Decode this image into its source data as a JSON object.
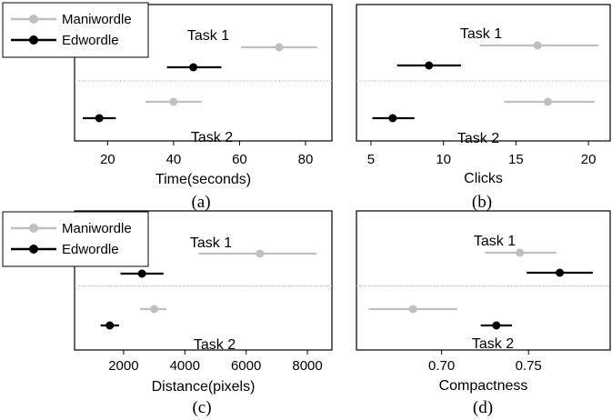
{
  "chart_data": [
    {
      "type": "scatter",
      "panel": "(a)",
      "xlabel": "Time(seconds)",
      "xlim": [
        10,
        88
      ],
      "xticks": [
        20,
        40,
        60,
        80
      ],
      "tick_labels": [
        "20",
        "40",
        "60",
        "80"
      ],
      "legend": {
        "position": "top-left",
        "entries": [
          "Maniwordle",
          "Edwordle"
        ]
      },
      "tasks": [
        "Task 1",
        "Task 2"
      ],
      "series": [
        {
          "name": "Maniwordle",
          "color": "#c0c0c0",
          "points": [
            {
              "task": "Task 1",
              "mean": 72,
              "low": 60.5,
              "high": 83.5
            },
            {
              "task": "Task 2",
              "mean": 40,
              "low": 31.5,
              "high": 48.5
            }
          ]
        },
        {
          "name": "Edwordle",
          "color": "#000000",
          "points": [
            {
              "task": "Task 1",
              "mean": 46,
              "low": 38,
              "high": 54.5
            },
            {
              "task": "Task 2",
              "mean": 17.5,
              "low": 12.5,
              "high": 22.5
            }
          ]
        }
      ]
    },
    {
      "type": "scatter",
      "panel": "(b)",
      "xlabel": "Clicks",
      "xlim": [
        4,
        21.5
      ],
      "xticks": [
        5,
        10,
        15,
        20
      ],
      "tick_labels": [
        "5",
        "10",
        "15",
        "20"
      ],
      "tasks": [
        "Task 1",
        "Task 2"
      ],
      "series": [
        {
          "name": "Maniwordle",
          "color": "#c0c0c0",
          "points": [
            {
              "task": "Task 1",
              "mean": 16.5,
              "low": 12.5,
              "high": 20.7
            },
            {
              "task": "Task 2",
              "mean": 17.2,
              "low": 14.2,
              "high": 20.4
            }
          ]
        },
        {
          "name": "Edwordle",
          "color": "#000000",
          "points": [
            {
              "task": "Task 1",
              "mean": 9,
              "low": 6.8,
              "high": 11.2
            },
            {
              "task": "Task 2",
              "mean": 6.5,
              "low": 5.1,
              "high": 8.0
            }
          ]
        }
      ]
    },
    {
      "type": "scatter",
      "panel": "(c)",
      "xlabel": "Distance(pixels)",
      "xlim": [
        400,
        8800
      ],
      "xticks": [
        2000,
        4000,
        6000,
        8000
      ],
      "tick_labels": [
        "2000",
        "4000",
        "6000",
        "8000"
      ],
      "legend": {
        "position": "top-left",
        "entries": [
          "Maniwordle",
          "Edwordle"
        ]
      },
      "tasks": [
        "Task 1",
        "Task 2"
      ],
      "series": [
        {
          "name": "Maniwordle",
          "color": "#c0c0c0",
          "points": [
            {
              "task": "Task 1",
              "mean": 6450,
              "low": 4450,
              "high": 8300
            },
            {
              "task": "Task 2",
              "mean": 3000,
              "low": 2550,
              "high": 3400
            }
          ]
        },
        {
          "name": "Edwordle",
          "color": "#000000",
          "points": [
            {
              "task": "Task 1",
              "mean": 2600,
              "low": 1900,
              "high": 3300
            },
            {
              "task": "Task 2",
              "mean": 1550,
              "low": 1250,
              "high": 1850
            }
          ]
        }
      ]
    },
    {
      "type": "scatter",
      "panel": "(d)",
      "xlabel": "Compactness",
      "xlim": [
        0.651,
        0.797
      ],
      "xticks": [
        0.7,
        0.75
      ],
      "tick_labels": [
        "0.70",
        "0.75"
      ],
      "tasks": [
        "Task 1",
        "Task 2"
      ],
      "series": [
        {
          "name": "Maniwordle",
          "color": "#c0c0c0",
          "points": [
            {
              "task": "Task 1",
              "mean": 0.745,
              "low": 0.725,
              "high": 0.766
            },
            {
              "task": "Task 2",
              "mean": 0.6835,
              "low": 0.658,
              "high": 0.709
            }
          ]
        },
        {
          "name": "Edwordle",
          "color": "#000000",
          "points": [
            {
              "task": "Task 1",
              "mean": 0.768,
              "low": 0.749,
              "high": 0.787
            },
            {
              "task": "Task 2",
              "mean": 0.7315,
              "low": 0.7225,
              "high": 0.7405
            }
          ]
        }
      ]
    }
  ]
}
